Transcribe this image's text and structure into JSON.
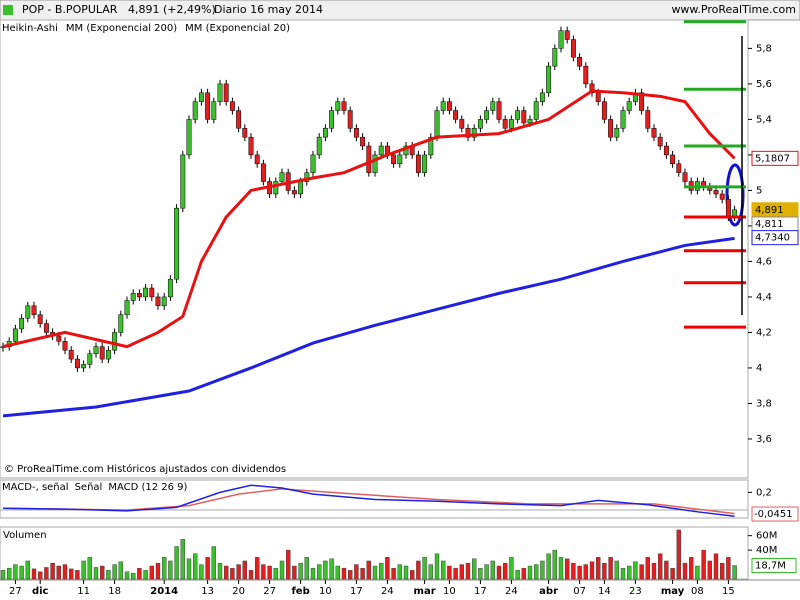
{
  "chart_data": {
    "type": "candlestick",
    "title": "POP - B.POPULAR",
    "last_price": "4,891 (+2,49%)",
    "period": "Diario 16 may 2014",
    "site": "www.ProRealTime.com",
    "legend": [
      "Heikin-Ashi",
      "MM (Exponencial 200)",
      "MM (Exponencial 20)"
    ],
    "footnote": "© ProRealTime.com Históricos ajustados con dividendos",
    "close": [
      4.12,
      4.15,
      4.22,
      4.28,
      4.35,
      4.3,
      4.25,
      4.2,
      4.18,
      4.15,
      4.1,
      4.05,
      4.0,
      4.02,
      4.08,
      4.12,
      4.05,
      4.1,
      4.2,
      4.3,
      4.38,
      4.42,
      4.4,
      4.45,
      4.4,
      4.35,
      4.4,
      4.5,
      4.9,
      5.2,
      5.4,
      5.5,
      5.55,
      5.4,
      5.5,
      5.6,
      5.5,
      5.45,
      5.35,
      5.3,
      5.2,
      5.15,
      5.05,
      4.98,
      5.05,
      5.1,
      5.0,
      4.98,
      5.05,
      5.1,
      5.2,
      5.3,
      5.35,
      5.45,
      5.5,
      5.45,
      5.35,
      5.3,
      5.25,
      5.1,
      5.2,
      5.25,
      5.2,
      5.15,
      5.2,
      5.25,
      5.2,
      5.1,
      5.2,
      5.3,
      5.45,
      5.5,
      5.45,
      5.4,
      5.35,
      5.3,
      5.35,
      5.4,
      5.45,
      5.5,
      5.4,
      5.35,
      5.4,
      5.45,
      5.38,
      5.4,
      5.5,
      5.55,
      5.7,
      5.8,
      5.9,
      5.85,
      5.75,
      5.7,
      5.6,
      5.55,
      5.5,
      5.4,
      5.3,
      5.35,
      5.45,
      5.5,
      5.55,
      5.45,
      5.35,
      5.3,
      5.25,
      5.2,
      5.15,
      5.1,
      5.05,
      5.0,
      5.05,
      5.02,
      5.0,
      4.98,
      4.95,
      4.85,
      4.891
    ],
    "up_color": "#3cbf2c",
    "down_color": "#e02020",
    "ylim": [
      3.38,
      5.96
    ],
    "yticks": [
      {
        "value": 3.6,
        "label": "3,6"
      },
      {
        "value": 3.8,
        "label": "3,8"
      },
      {
        "value": 4,
        "label": "4"
      },
      {
        "value": 4.2,
        "label": "4,2"
      },
      {
        "value": 4.4,
        "label": "4,4"
      },
      {
        "value": 4.6,
        "label": "4,6"
      },
      {
        "value": 4.8,
        "label": "4,8"
      },
      {
        "value": 5,
        "label": "5"
      },
      {
        "value": 5.2,
        "label": "5,2"
      },
      {
        "value": 5.4,
        "label": "5,4"
      },
      {
        "value": 5.6,
        "label": "5,6"
      },
      {
        "value": 5.8,
        "label": "5,8"
      }
    ],
    "lines": [
      {
        "name": "MM (Exponencial 20)",
        "color": "#e81010",
        "x": [
          0,
          10,
          20,
          25,
          29,
          32,
          36,
          40,
          50,
          55,
          62,
          70,
          80,
          88,
          95,
          100,
          106,
          110,
          114,
          118
        ],
        "values": [
          4.12,
          4.2,
          4.12,
          4.2,
          4.29,
          4.6,
          4.85,
          5.0,
          5.07,
          5.1,
          5.2,
          5.3,
          5.32,
          5.4,
          5.56,
          5.55,
          5.53,
          5.5,
          5.32,
          5.18
        ]
      },
      {
        "name": "MM (Exponencial 200)",
        "color": "#2020e0",
        "x": [
          0,
          15,
          30,
          40,
          50,
          60,
          70,
          80,
          90,
          100,
          110,
          118
        ],
        "values": [
          3.73,
          3.78,
          3.87,
          4.0,
          4.14,
          4.24,
          4.33,
          4.42,
          4.5,
          4.6,
          4.69,
          4.73
        ]
      }
    ],
    "levels": [
      {
        "color": "#22aa22",
        "values": [
          5.95,
          5.57,
          5.25,
          5.02
        ]
      },
      {
        "color": "#ee0000",
        "values": [
          4.85,
          4.66,
          4.48,
          4.23
        ]
      }
    ],
    "price_labels": [
      {
        "label": "5,1807",
        "value": 5.1807,
        "color": "#e81010"
      },
      {
        "label": "4,891",
        "value": 4.891,
        "color": "#e0b000"
      },
      {
        "label": "4,811",
        "value": 4.811,
        "color": "#888888"
      },
      {
        "label": "4,7340",
        "value": 4.734,
        "color": "#2020e0"
      }
    ],
    "xticks": [
      {
        "value": 2,
        "label": "27"
      },
      {
        "value": 6,
        "label": "dic"
      },
      {
        "value": 13,
        "label": "11"
      },
      {
        "value": 18,
        "label": "18"
      },
      {
        "value": 26,
        "label": "2014"
      },
      {
        "value": 33,
        "label": "13"
      },
      {
        "value": 38,
        "label": "20"
      },
      {
        "value": 43,
        "label": "27"
      },
      {
        "value": 48,
        "label": "feb"
      },
      {
        "value": 52,
        "label": "10"
      },
      {
        "value": 57,
        "label": "17"
      },
      {
        "value": 62,
        "label": "24"
      },
      {
        "value": 68,
        "label": "mar"
      },
      {
        "value": 72,
        "label": "10"
      },
      {
        "value": 77,
        "label": "17"
      },
      {
        "value": 82,
        "label": "24"
      },
      {
        "value": 88,
        "label": "abr"
      },
      {
        "value": 93,
        "label": "07"
      },
      {
        "value": 97,
        "label": "14"
      },
      {
        "value": 102,
        "label": "23"
      },
      {
        "value": 108,
        "label": "may"
      },
      {
        "value": 112,
        "label": "08"
      },
      {
        "value": 117,
        "label": "15"
      }
    ],
    "macd": {
      "legend": [
        "MACD-, señal",
        "Señal",
        "MACD (12 26 9)"
      ],
      "ylim": [
        -0.09,
        0.34
      ],
      "yticks": [
        {
          "value": 0.2,
          "label": "0,2"
        }
      ],
      "last": {
        "value": -0.0451,
        "label": "-0,0451"
      },
      "macd_line": {
        "color": "#2020e0",
        "x": [
          0,
          10,
          20,
          28,
          35,
          40,
          45,
          50,
          60,
          70,
          80,
          90,
          96,
          104,
          112,
          118
        ],
        "values": [
          0.02,
          0.01,
          -0.01,
          0.03,
          0.2,
          0.28,
          0.25,
          0.18,
          0.12,
          0.1,
          0.07,
          0.05,
          0.11,
          0.06,
          -0.02,
          -0.07
        ]
      },
      "signal_line": {
        "color": "#e06060",
        "x": [
          0,
          20,
          30,
          38,
          45,
          55,
          70,
          85,
          95,
          105,
          112,
          118
        ],
        "values": [
          0.02,
          0,
          0.05,
          0.18,
          0.24,
          0.19,
          0.12,
          0.07,
          0.07,
          0.07,
          0.01,
          -0.04
        ]
      }
    },
    "volume": {
      "legend": "Volumen",
      "ylim": [
        0,
        72
      ],
      "yticks": [
        {
          "value": 40,
          "label": "40M"
        },
        {
          "value": 60,
          "label": "60M"
        }
      ],
      "last": {
        "value": 18.7,
        "label": "18,7M"
      },
      "values": [
        12,
        15,
        20,
        18,
        25,
        14,
        10,
        16,
        22,
        18,
        20,
        14,
        12,
        25,
        30,
        16,
        18,
        12,
        20,
        24,
        10,
        8,
        15,
        12,
        18,
        22,
        30,
        25,
        45,
        55,
        28,
        35,
        20,
        30,
        45,
        22,
        18,
        15,
        20,
        25,
        12,
        30,
        20,
        18,
        15,
        25,
        40,
        18,
        22,
        30,
        15,
        20,
        25,
        28,
        18,
        15,
        12,
        20,
        15,
        25,
        18,
        22,
        30,
        15,
        20,
        18,
        12,
        25,
        30,
        20,
        35,
        25,
        18,
        15,
        20,
        22,
        28,
        15,
        20,
        25,
        18,
        22,
        30,
        12,
        15,
        18,
        20,
        25,
        35,
        40,
        30,
        28,
        22,
        18,
        20,
        24,
        30,
        22,
        30,
        25,
        15,
        18,
        24,
        20,
        30,
        22,
        35,
        25,
        15,
        68,
        22,
        30,
        18,
        40,
        25,
        35,
        22,
        30,
        18.7
      ]
    }
  }
}
